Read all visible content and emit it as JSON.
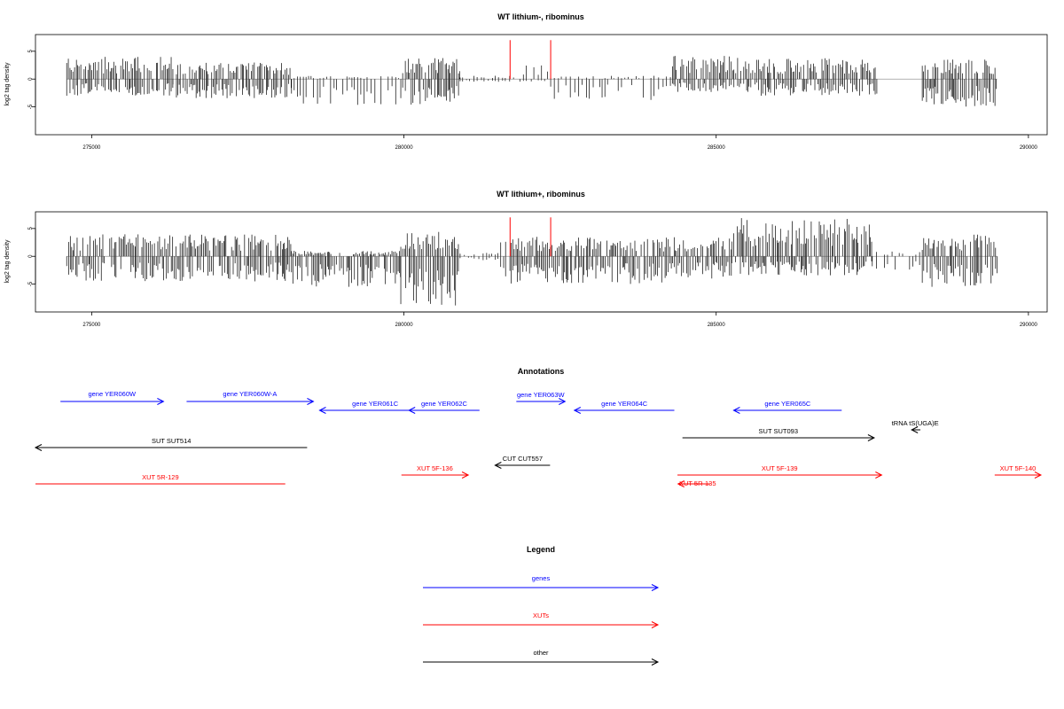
{
  "chart_data": [
    {
      "type": "bar",
      "title": "WT lithium-, ribominus",
      "xlabel": "",
      "ylabel": "log2 tag density",
      "xlim": [
        274100,
        290300
      ],
      "ylim": [
        -10,
        8
      ],
      "xticks": [
        275000,
        280000,
        285000,
        290000
      ],
      "xtick_labels": [
        "275000",
        "280000",
        "285000",
        "290000"
      ],
      "yticks": [
        -5,
        0,
        5
      ],
      "ytick_labels": [
        "-5",
        "0",
        "5"
      ],
      "baseline": {
        "x_range": [
          274600,
          289500
        ],
        "color": "#999999"
      },
      "markers": {
        "color": "#ff0000",
        "x": [
          281700,
          282350
        ],
        "height": 7
      },
      "bar_color": "#000000",
      "density_profile": [
        {
          "x_range": [
            274600,
            276300
          ],
          "max_pos": 4.0,
          "max_neg": 3.0
        },
        {
          "x_range": [
            276300,
            278200
          ],
          "max_pos": 3.0,
          "max_neg": 3.5
        },
        {
          "x_range": [
            278200,
            279950
          ],
          "max_pos": 0.6,
          "max_neg": 4.8
        },
        {
          "x_range": [
            279950,
            280900
          ],
          "max_pos": 4.0,
          "max_neg": 4.6
        },
        {
          "x_range": [
            280900,
            281800
          ],
          "max_pos": 0.6,
          "max_neg": 0.5
        },
        {
          "x_range": [
            281800,
            282350
          ],
          "max_pos": 3.0,
          "max_neg": 0.5
        },
        {
          "x_range": [
            282350,
            284300
          ],
          "max_pos": 0.6,
          "max_neg": 3.8
        },
        {
          "x_range": [
            284300,
            285700
          ],
          "max_pos": 4.2,
          "max_neg": 2.5
        },
        {
          "x_range": [
            285700,
            287600
          ],
          "max_pos": 3.8,
          "max_neg": 3.0
        },
        {
          "x_range": [
            287600,
            288300
          ],
          "max_pos": 0.0,
          "max_neg": 0.0
        },
        {
          "x_range": [
            288300,
            289500
          ],
          "max_pos": 3.5,
          "max_neg": 5.0
        }
      ]
    },
    {
      "type": "bar",
      "title": "WT lithium+, ribominus",
      "xlabel": "",
      "ylabel": "log2 tag density",
      "xlim": [
        274100,
        290300
      ],
      "ylim": [
        -10,
        8
      ],
      "xticks": [
        275000,
        280000,
        285000,
        290000
      ],
      "xtick_labels": [
        "275000",
        "280000",
        "285000",
        "290000"
      ],
      "yticks": [
        -5,
        0,
        5
      ],
      "ytick_labels": [
        "-5",
        "0",
        "5"
      ],
      "baseline": {
        "x_range": [
          274600,
          289500
        ],
        "color": "#999999"
      },
      "markers": {
        "color": "#ff0000",
        "x": [
          281700,
          282350
        ],
        "height": 7
      },
      "bar_color": "#000000",
      "density_profile": [
        {
          "x_range": [
            274600,
            278200
          ],
          "max_pos": 4.0,
          "max_neg": 4.5
        },
        {
          "x_range": [
            278200,
            279950
          ],
          "max_pos": 1.0,
          "max_neg": 5.5
        },
        {
          "x_range": [
            279950,
            280900
          ],
          "max_pos": 4.5,
          "max_neg": 9.0
        },
        {
          "x_range": [
            280900,
            281550
          ],
          "max_pos": 0.7,
          "max_neg": 0.7
        },
        {
          "x_range": [
            281550,
            284300
          ],
          "max_pos": 3.5,
          "max_neg": 5.0
        },
        {
          "x_range": [
            284300,
            285250
          ],
          "max_pos": 3.5,
          "max_neg": 4.0
        },
        {
          "x_range": [
            285250,
            287500
          ],
          "max_pos": 7.0,
          "max_neg": 3.5
        },
        {
          "x_range": [
            287500,
            288300
          ],
          "max_pos": 1.0,
          "max_neg": 2.5
        },
        {
          "x_range": [
            288300,
            289500
          ],
          "max_pos": 4.0,
          "max_neg": 5.5
        }
      ]
    }
  ],
  "annotations": {
    "title": "Annotations",
    "xlim": [
      274100,
      290300
    ],
    "features": [
      {
        "label": "gene YER060W",
        "start": 274500,
        "end": 276150,
        "strand": "+",
        "color": "#0000ff"
      },
      {
        "label": "gene YER060W-A",
        "start": 276520,
        "end": 278550,
        "strand": "+",
        "color": "#0000ff"
      },
      {
        "label": "gene YER061C",
        "start": 278650,
        "end": 280430,
        "strand": "-",
        "color": "#0000ff"
      },
      {
        "label": "gene YER062C",
        "start": 280080,
        "end": 281210,
        "strand": "-",
        "color": "#0000ff"
      },
      {
        "label": "gene YER063W",
        "start": 281800,
        "end": 282580,
        "strand": "+",
        "color": "#0000ff"
      },
      {
        "label": "gene YER064C",
        "start": 282730,
        "end": 284330,
        "strand": "-",
        "color": "#0000ff"
      },
      {
        "label": "gene YER065C",
        "start": 285280,
        "end": 287010,
        "strand": "-",
        "color": "#0000ff"
      },
      {
        "label": "tRNA tS(UGA)E",
        "start": 288130,
        "end": 288270,
        "strand": "-",
        "color": "#000000"
      },
      {
        "label": "SUT SUT514",
        "start": 274100,
        "end": 278450,
        "strand": "-",
        "color": "#000000"
      },
      {
        "label": "SUT SUT093",
        "start": 284460,
        "end": 287530,
        "strand": "+",
        "color": "#000000"
      },
      {
        "label": "CUT CUT557",
        "start": 281460,
        "end": 282340,
        "strand": "-",
        "color": "#000000"
      },
      {
        "label": "XUT 5R-129",
        "start": 274100,
        "end": 278100,
        "strand": "none",
        "color": "#ff0000"
      },
      {
        "label": "XUT 5F-136",
        "start": 279960,
        "end": 281030,
        "strand": "+",
        "color": "#ff0000"
      },
      {
        "label": "XUT 5F-139",
        "start": 284380,
        "end": 287650,
        "strand": "+",
        "color": "#ff0000"
      },
      {
        "label": "XUT 5R-135",
        "start": 284390,
        "end": 284900,
        "strand": "-",
        "color": "#ff0000"
      },
      {
        "label": "XUT 5F-140",
        "start": 289460,
        "end": 290200,
        "strand": "+",
        "color": "#ff0000"
      }
    ]
  },
  "legend": {
    "title": "Legend",
    "items": [
      {
        "label": "genes",
        "color": "#0000ff"
      },
      {
        "label": "XUTs",
        "color": "#ff0000"
      },
      {
        "label": "other",
        "color": "#000000"
      }
    ]
  }
}
